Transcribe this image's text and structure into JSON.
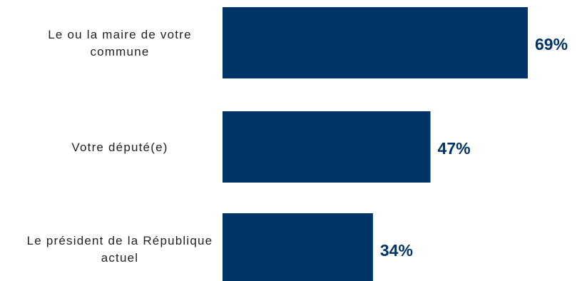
{
  "chart_data": {
    "type": "bar",
    "orientation": "horizontal",
    "categories": [
      [
        "Le ou la maire de votre",
        "commune"
      ],
      [
        "Votre député(e)"
      ],
      [
        "Le président de la République",
        "actuel"
      ]
    ],
    "values": [
      69,
      47,
      34
    ],
    "value_labels": [
      "69%",
      "47%",
      "34%"
    ],
    "unit": "%",
    "xlim": [
      0,
      100
    ],
    "grid": false,
    "legend": "none",
    "colors": {
      "bar": "#003366",
      "value_label": "#003366",
      "category_label": "#222222"
    }
  }
}
